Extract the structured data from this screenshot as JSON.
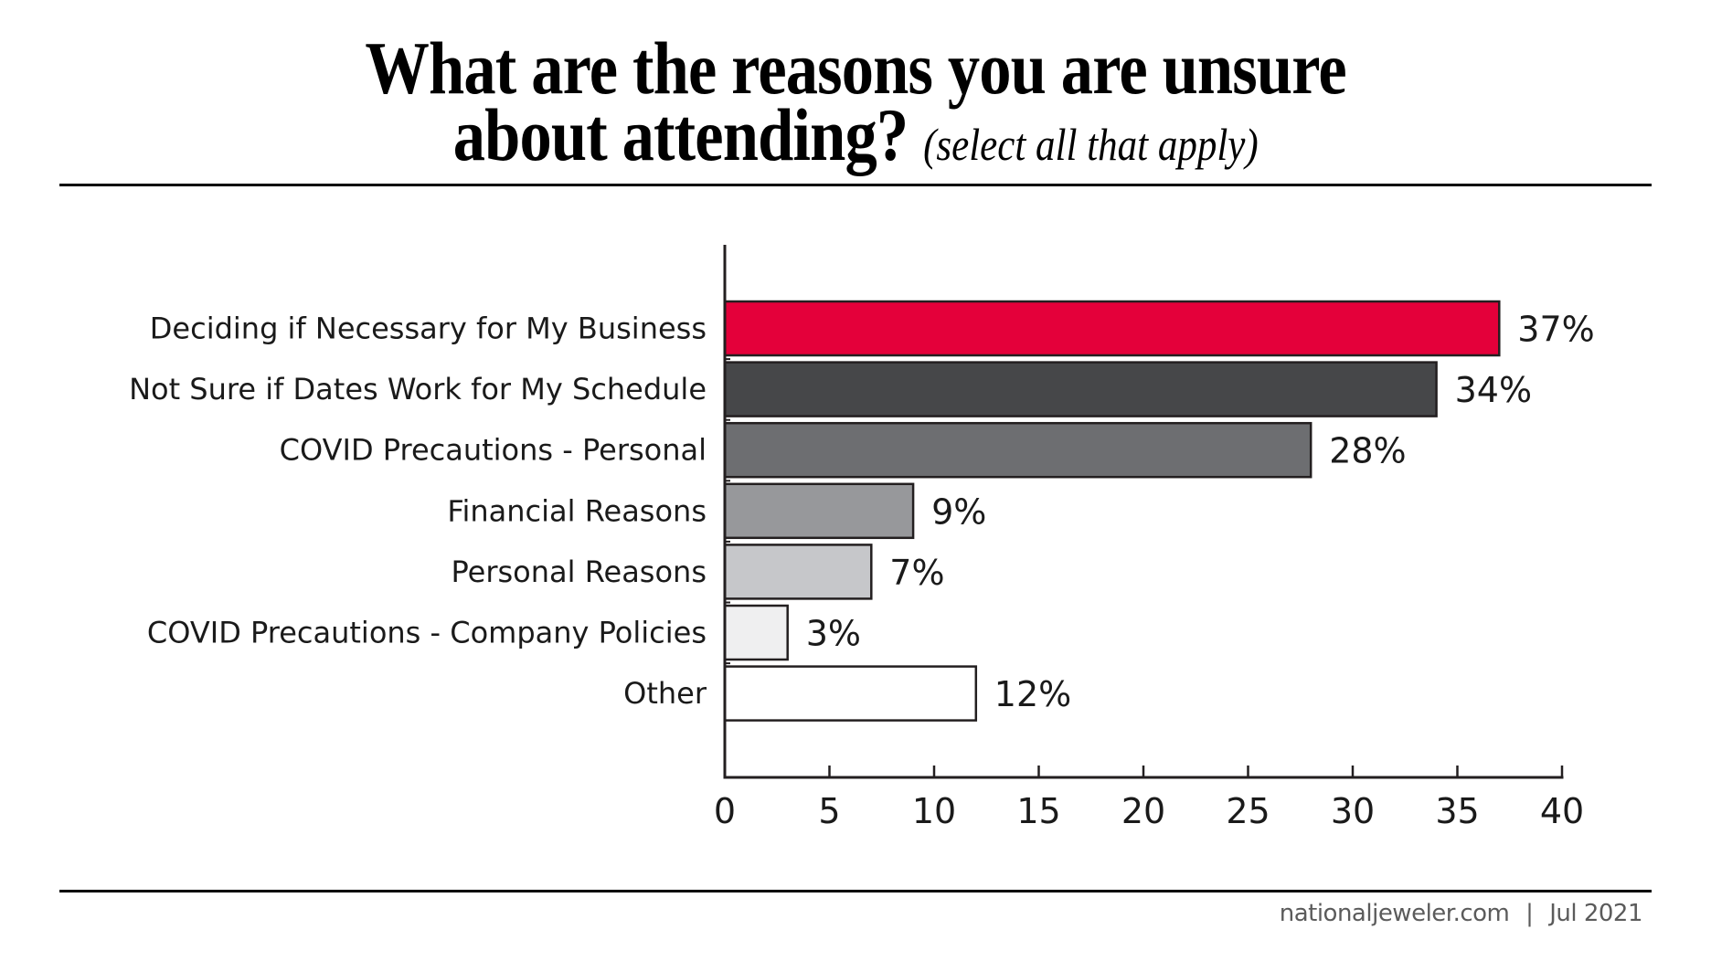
{
  "title": {
    "line1": "What are the reasons you are unsure",
    "line2": "about attending?",
    "subtitle": "(select all that apply)"
  },
  "footer": {
    "source": "nationaljeweler.com",
    "separator": "|",
    "date": "Jul 2021"
  },
  "chart_data": {
    "type": "bar",
    "orientation": "horizontal",
    "title": "What are the reasons you are unsure about attending? (select all that apply)",
    "xlabel": "",
    "ylabel": "",
    "categories": [
      "Deciding if Necessary for My Business",
      "Not Sure if Dates Work for My Schedule",
      "COVID Precautions - Personal",
      "Financial Reasons",
      "Personal Reasons",
      "COVID Precautions - Company Policies",
      "Other"
    ],
    "values": [
      37,
      34,
      28,
      9,
      7,
      3,
      12
    ],
    "value_labels": [
      "37%",
      "34%",
      "28%",
      "9%",
      "7%",
      "3%",
      "12%"
    ],
    "colors": [
      "#e4003a",
      "#464749",
      "#6d6e71",
      "#97989b",
      "#c6c7ca",
      "#efeff0",
      "#ffffff"
    ],
    "outline_color": "#231f20",
    "xlim": [
      0,
      40
    ],
    "xticks": [
      0,
      5,
      10,
      15,
      20,
      25,
      30,
      35,
      40
    ],
    "xtick_labels": [
      "0",
      "5",
      "10",
      "15",
      "20",
      "25",
      "30",
      "35",
      "40"
    ],
    "grid": false,
    "legend": "none"
  }
}
